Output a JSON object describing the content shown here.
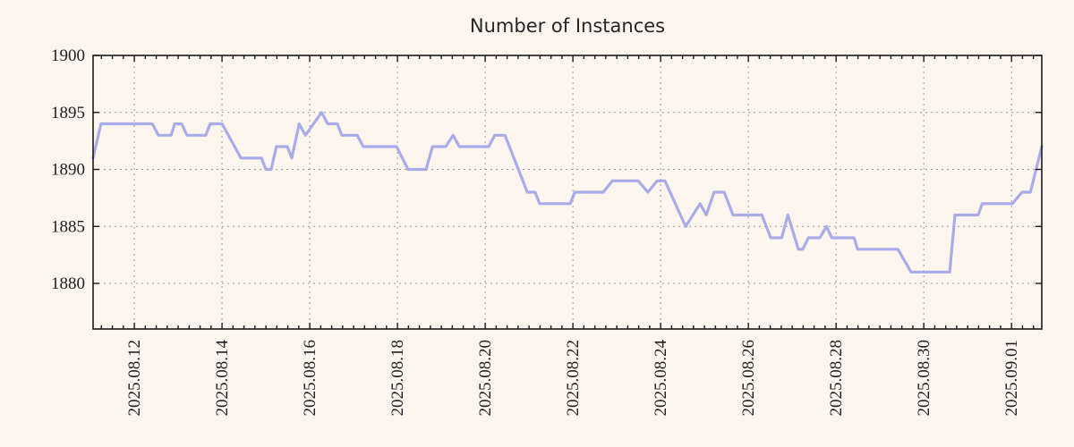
{
  "page": {
    "background_color": "#fdf6ef"
  },
  "chart_data": {
    "type": "line",
    "title": "Number of Instances",
    "xlabel": "",
    "ylabel": "",
    "legend": "none",
    "grid": {
      "shown": true,
      "style": "dotted",
      "color": "#9a9a9a"
    },
    "border_color": "#1a1a1a",
    "x_axis": {
      "unit": "days since 2025-08-12 00:00",
      "range": [
        -0.94,
        20.69
      ],
      "minor_tick_interval": 0.25,
      "ticks": [
        {
          "t": 0,
          "label": "2025.08.12"
        },
        {
          "t": 2,
          "label": "2025.08.14"
        },
        {
          "t": 4,
          "label": "2025.08.16"
        },
        {
          "t": 6,
          "label": "2025.08.18"
        },
        {
          "t": 8,
          "label": "2025.08.20"
        },
        {
          "t": 10,
          "label": "2025.08.22"
        },
        {
          "t": 12,
          "label": "2025.08.24"
        },
        {
          "t": 14,
          "label": "2025.08.26"
        },
        {
          "t": 16,
          "label": "2025.08.28"
        },
        {
          "t": 18,
          "label": "2025.08.30"
        },
        {
          "t": 20,
          "label": "2025.09.01"
        }
      ]
    },
    "y_axis": {
      "range": [
        1876,
        1900
      ],
      "ticks": [
        {
          "v": 1880,
          "label": "1880"
        },
        {
          "v": 1885,
          "label": "1885"
        },
        {
          "v": 1890,
          "label": "1890"
        },
        {
          "v": 1895,
          "label": "1895"
        },
        {
          "v": 1900,
          "label": "1900"
        }
      ]
    },
    "series": [
      {
        "name": "instances",
        "color": "#a9ace9",
        "line_width": 3.2,
        "points": [
          [
            -0.94,
            1891
          ],
          [
            -0.76,
            1894
          ],
          [
            0.41,
            1894
          ],
          [
            0.55,
            1893
          ],
          [
            0.84,
            1893
          ],
          [
            0.92,
            1894
          ],
          [
            1.08,
            1894
          ],
          [
            1.2,
            1893
          ],
          [
            1.63,
            1893
          ],
          [
            1.73,
            1894
          ],
          [
            2.0,
            1894
          ],
          [
            2.43,
            1891
          ],
          [
            2.9,
            1891
          ],
          [
            3.0,
            1890
          ],
          [
            3.12,
            1890
          ],
          [
            3.24,
            1892
          ],
          [
            3.49,
            1892
          ],
          [
            3.59,
            1891
          ],
          [
            3.76,
            1894
          ],
          [
            3.9,
            1893
          ],
          [
            4.27,
            1895
          ],
          [
            4.41,
            1894
          ],
          [
            4.63,
            1894
          ],
          [
            4.73,
            1893
          ],
          [
            5.08,
            1893
          ],
          [
            5.22,
            1892
          ],
          [
            5.98,
            1892
          ],
          [
            6.24,
            1890
          ],
          [
            6.65,
            1890
          ],
          [
            6.8,
            1892
          ],
          [
            7.1,
            1892
          ],
          [
            7.27,
            1893
          ],
          [
            7.41,
            1892
          ],
          [
            8.08,
            1892
          ],
          [
            8.22,
            1893
          ],
          [
            8.45,
            1893
          ],
          [
            8.96,
            1888
          ],
          [
            9.14,
            1888
          ],
          [
            9.24,
            1887
          ],
          [
            9.94,
            1887
          ],
          [
            10.04,
            1888
          ],
          [
            10.69,
            1888
          ],
          [
            10.9,
            1889
          ],
          [
            11.49,
            1889
          ],
          [
            11.71,
            1888
          ],
          [
            11.92,
            1889
          ],
          [
            12.1,
            1889
          ],
          [
            12.57,
            1885
          ],
          [
            12.9,
            1887
          ],
          [
            13.04,
            1886
          ],
          [
            13.22,
            1888
          ],
          [
            13.45,
            1888
          ],
          [
            13.65,
            1886
          ],
          [
            14.31,
            1886
          ],
          [
            14.51,
            1884
          ],
          [
            14.76,
            1884
          ],
          [
            14.9,
            1886
          ],
          [
            15.14,
            1883
          ],
          [
            15.24,
            1883
          ],
          [
            15.37,
            1884
          ],
          [
            15.63,
            1884
          ],
          [
            15.78,
            1885
          ],
          [
            15.9,
            1884
          ],
          [
            16.41,
            1884
          ],
          [
            16.49,
            1883
          ],
          [
            17.41,
            1883
          ],
          [
            17.71,
            1881
          ],
          [
            18.59,
            1881
          ],
          [
            18.71,
            1886
          ],
          [
            19.24,
            1886
          ],
          [
            19.33,
            1887
          ],
          [
            20.02,
            1887
          ],
          [
            20.24,
            1888
          ],
          [
            20.43,
            1888
          ],
          [
            20.69,
            1892
          ]
        ]
      }
    ]
  }
}
